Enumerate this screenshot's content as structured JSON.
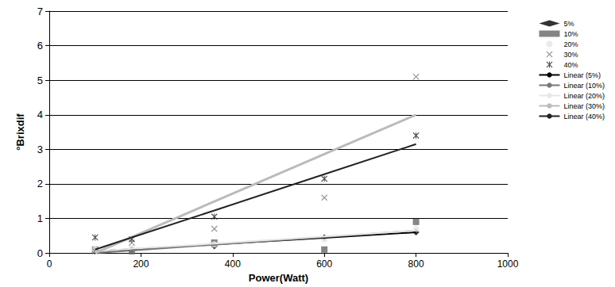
{
  "chart_data": {
    "type": "scatter",
    "x_label": "Power(Watt)",
    "y_label": "°Brixdif",
    "x": [
      100,
      180,
      360,
      600,
      800
    ],
    "xlim": [
      0,
      1000
    ],
    "xticks": [
      0,
      200,
      400,
      600,
      800,
      1000
    ],
    "ylim": [
      0,
      7
    ],
    "yticks": [
      0,
      1,
      2,
      3,
      4,
      5,
      6,
      7
    ],
    "grid": true,
    "legend": "right",
    "series": [
      {
        "name": "5%",
        "type": "scatter",
        "marker": "diamond",
        "color": "#000000",
        "values": [
          0.05,
          0.1,
          0.2,
          0.45,
          0.6
        ]
      },
      {
        "name": "10%",
        "type": "scatter",
        "marker": "square",
        "color": "#666666",
        "values": [
          0.1,
          0.05,
          0.3,
          0.1,
          0.9
        ]
      },
      {
        "name": "20%",
        "type": "scatter",
        "marker": "circle",
        "color": "#e6e6e6",
        "values": [
          0.1,
          0.15,
          0.25,
          0.4,
          0.7
        ]
      },
      {
        "name": "30%",
        "type": "scatter",
        "marker": "x",
        "color": "#777777",
        "values": [
          0.05,
          0.3,
          0.7,
          1.6,
          5.1
        ]
      },
      {
        "name": "40%",
        "type": "scatter",
        "marker": "asterisk",
        "color": "#222222",
        "values": [
          0.45,
          0.4,
          1.05,
          2.15,
          3.4
        ]
      },
      {
        "name": "Linear (5%)",
        "type": "line",
        "line_style": "solid",
        "color": "#000000",
        "values": [
          0.05,
          0.11,
          0.25,
          0.44,
          0.6
        ]
      },
      {
        "name": "Linear (10%)",
        "type": "line",
        "line_style": "solid",
        "color": "#777777",
        "values": [
          0.0,
          0.07,
          0.24,
          0.46,
          0.65
        ]
      },
      {
        "name": "Linear (20%)",
        "type": "line",
        "line_style": "solid",
        "color": "#e6e6e6",
        "values": [
          0.05,
          0.12,
          0.27,
          0.48,
          0.65
        ]
      },
      {
        "name": "Linear (30%)",
        "type": "line",
        "line_style": "solid",
        "color": "#bbbbbb",
        "values": [
          0.0,
          0.46,
          1.49,
          2.86,
          4.0
        ]
      },
      {
        "name": "Linear (40%)",
        "type": "line",
        "line_style": "solid",
        "color": "#222222",
        "values": [
          0.1,
          0.45,
          1.23,
          2.28,
          3.15
        ]
      }
    ]
  }
}
